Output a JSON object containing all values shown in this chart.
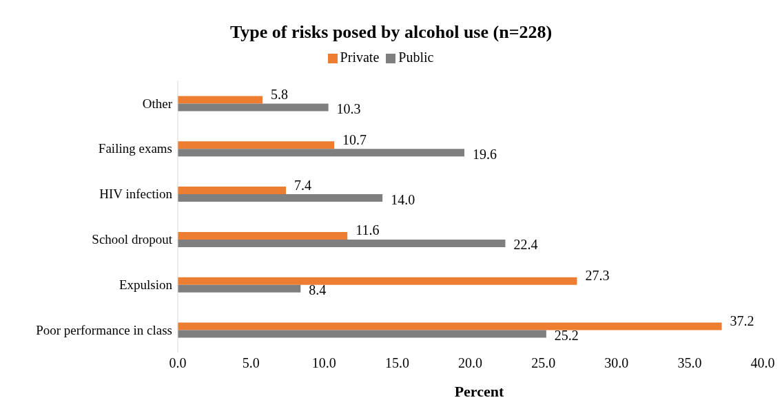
{
  "chart_data": {
    "type": "bar",
    "orientation": "horizontal",
    "title": "Type of risks posed by alcohol use (n=228)",
    "xlabel": "Percent",
    "categories": [
      "Other",
      "Failing exams",
      "HIV infection",
      "School dropout",
      "Expulsion",
      "Poor performance in class"
    ],
    "series": [
      {
        "name": "Private",
        "color": "#ed7d31",
        "values": [
          5.8,
          10.7,
          7.4,
          11.6,
          27.3,
          37.2
        ],
        "value_labels": [
          "5.8",
          "10.7",
          "7.4",
          "11.6",
          "27.3",
          "37.2"
        ]
      },
      {
        "name": "Public",
        "color": "#7f7f7f",
        "values": [
          10.3,
          19.6,
          14.0,
          22.4,
          8.4,
          25.2
        ],
        "value_labels": [
          "10.3",
          "19.6",
          "14.0",
          "22.4",
          "8.4",
          "25.2"
        ]
      }
    ],
    "xlim": [
      0,
      40
    ],
    "xticks": [
      {
        "value": 0,
        "label": "0.0"
      },
      {
        "value": 5,
        "label": "5.0"
      },
      {
        "value": 10,
        "label": "10.0"
      },
      {
        "value": 15,
        "label": "15.0"
      },
      {
        "value": 20,
        "label": "20.0"
      },
      {
        "value": 25,
        "label": "25.0"
      },
      {
        "value": 30,
        "label": "30.0"
      },
      {
        "value": 35,
        "label": "35.0"
      },
      {
        "value": 40,
        "label": "40.0"
      }
    ],
    "grid": false,
    "legend": "top"
  }
}
